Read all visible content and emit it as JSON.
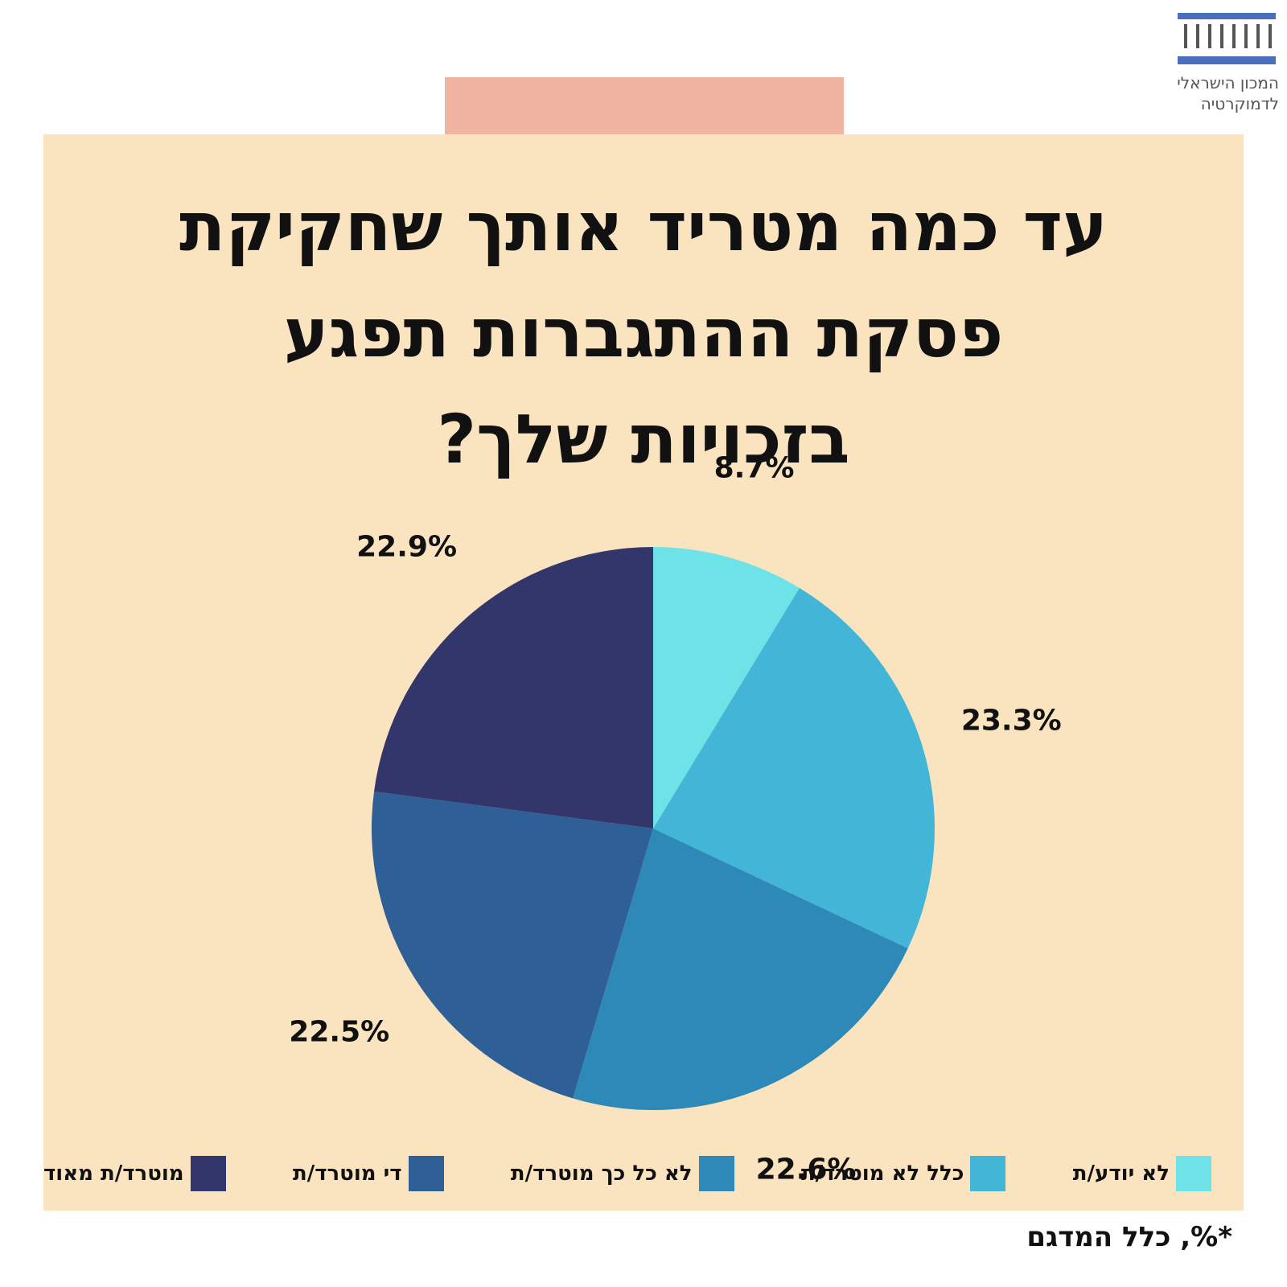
{
  "logo": {
    "line1": "המכון הישראלי",
    "line2": "לדמוקרטיה",
    "icon": "columns-building-icon",
    "color": "#4a6fbf"
  },
  "title_lines": [
    "עד כמה מטריד אותך שחקיקת",
    "פסקת ההתגברות תפגע",
    "בזכויות שלך?"
  ],
  "chart_data": {
    "type": "pie",
    "title": "עד כמה מטריד אותך שחקיקת פסקת ההתגברות תפגע בזכויות שלך?",
    "slices": [
      {
        "label": "לא יודע/ת",
        "value": 8.7,
        "display": "8.7%",
        "color": "#6de3e8"
      },
      {
        "label": "כלל לא מוטרד/ת",
        "value": 23.3,
        "display": "23.3%",
        "color": "#43b5d6"
      },
      {
        "label": "לא כל כך מוטרד/ת",
        "value": 22.6,
        "display": "22.6%",
        "color": "#2d8ab8"
      },
      {
        "label": "די מוטרד/ת",
        "value": 22.5,
        "display": "22.5%",
        "color": "#2f5f97"
      },
      {
        "label": "מוטרד/ת מאוד",
        "value": 22.9,
        "display": "22.9%",
        "color": "#32366b"
      }
    ],
    "legend_position": "bottom"
  },
  "footnote": "*%, כלל המדגם",
  "colors": {
    "panel": "#fae3bf",
    "accent_tab": "#f0b4a0",
    "text": "#111111"
  }
}
